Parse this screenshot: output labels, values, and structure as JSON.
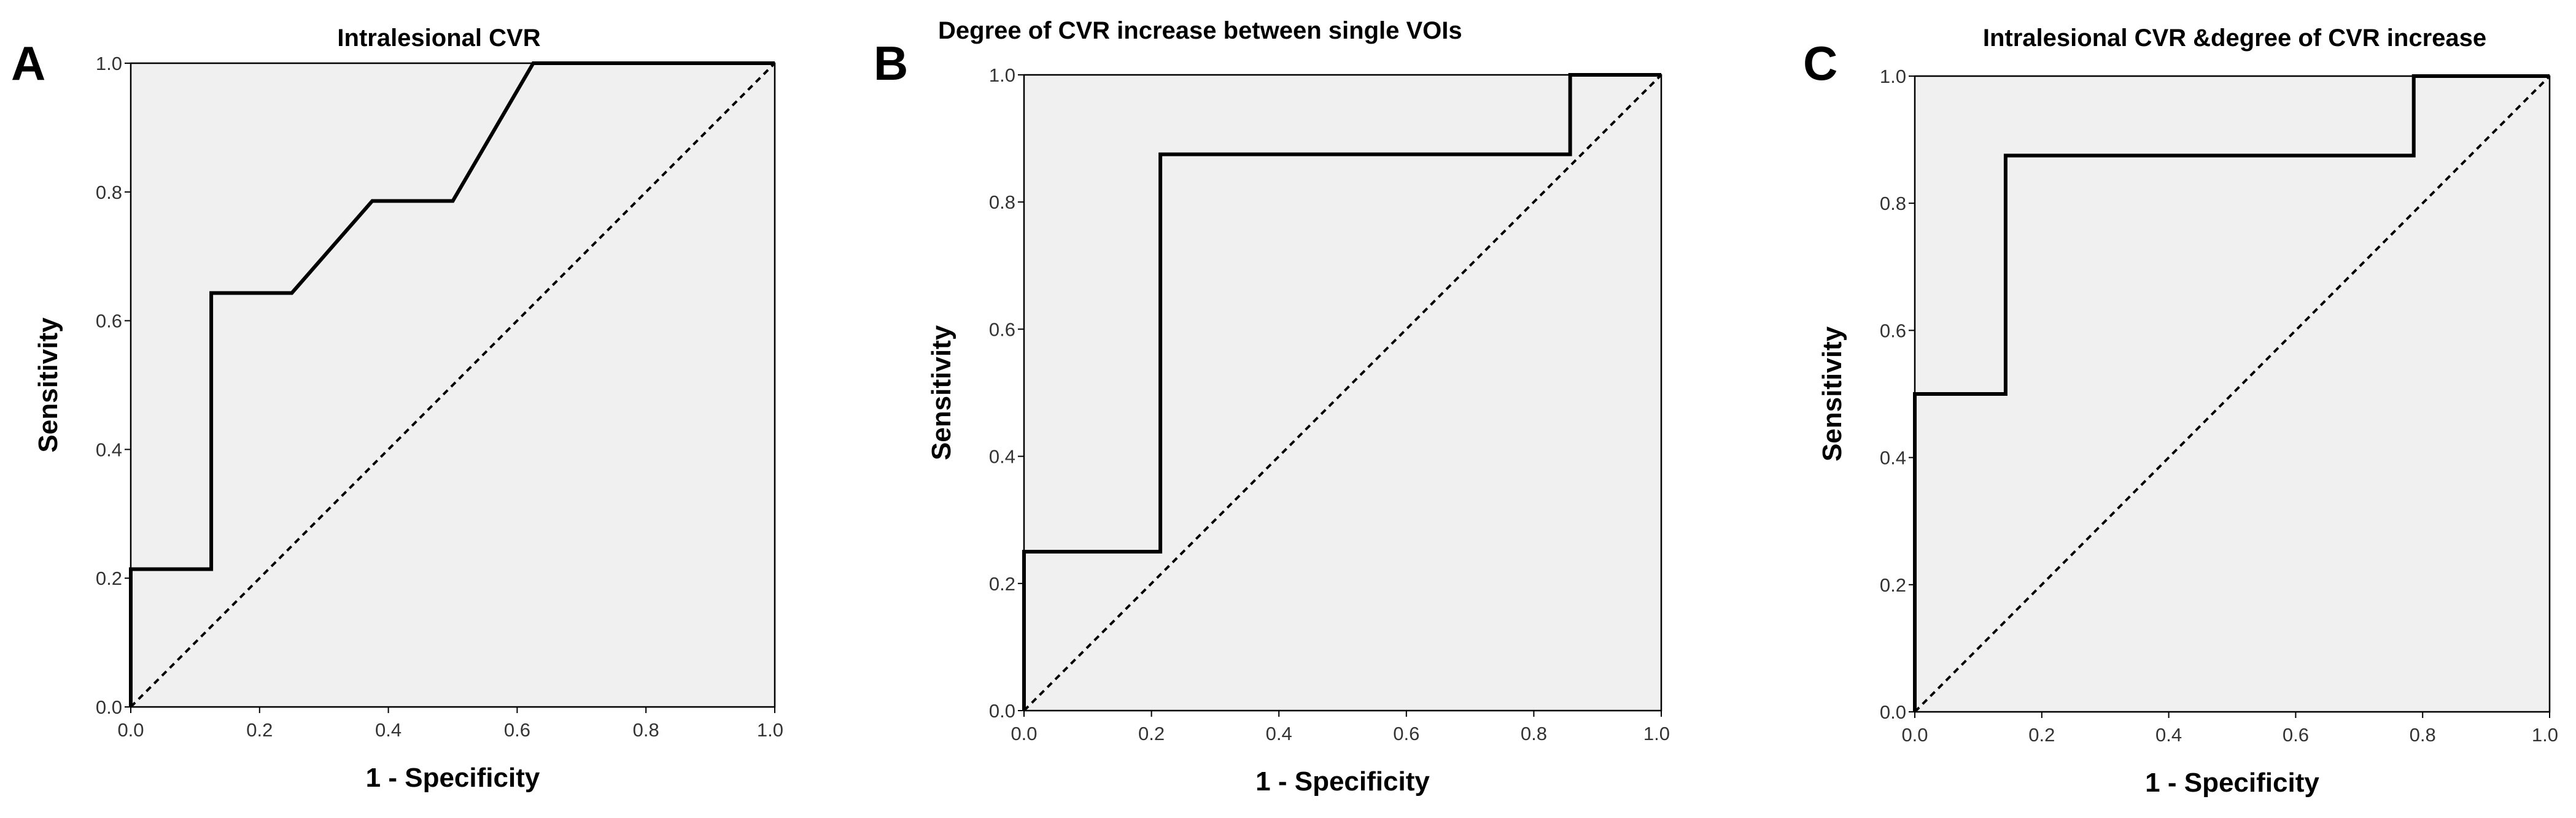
{
  "chart_data": [
    {
      "type": "line",
      "panel": "A",
      "title": "Intralesional CVR",
      "xlabel": "1 - Specificity",
      "ylabel": "Sensitivity",
      "xlim": [
        0,
        1
      ],
      "ylim": [
        0,
        1
      ],
      "x_ticks": [
        "0.0",
        "0.2",
        "0.4",
        "0.6",
        "0.8",
        "1.0"
      ],
      "y_ticks": [
        "0.0",
        "0.2",
        "0.4",
        "0.6",
        "0.8",
        "1.0"
      ],
      "series": [
        {
          "name": "ROC curve",
          "x": [
            0,
            0,
            0.125,
            0.125,
            0.25,
            0.375,
            0.5,
            0.625,
            1.0
          ],
          "y": [
            0,
            0.214,
            0.214,
            0.643,
            0.643,
            0.786,
            0.786,
            1.0,
            1.0
          ]
        },
        {
          "name": "Reference line",
          "x": [
            0,
            1
          ],
          "y": [
            0,
            1
          ]
        }
      ]
    },
    {
      "type": "line",
      "panel": "B",
      "title": "Degree of CVR increase between single VOIs",
      "xlabel": "1 - Specificity",
      "ylabel": "Sensitivity",
      "xlim": [
        0,
        1
      ],
      "ylim": [
        0,
        1
      ],
      "x_ticks": [
        "0.0",
        "0.2",
        "0.4",
        "0.6",
        "0.8",
        "1.0"
      ],
      "y_ticks": [
        "0.0",
        "0.2",
        "0.4",
        "0.6",
        "0.8",
        "1.0"
      ],
      "series": [
        {
          "name": "ROC curve",
          "x": [
            0,
            0,
            0.214,
            0.214,
            0.857,
            0.857,
            1.0
          ],
          "y": [
            0,
            0.25,
            0.25,
            0.875,
            0.875,
            1.0,
            1.0
          ]
        },
        {
          "name": "Reference line",
          "x": [
            0,
            1
          ],
          "y": [
            0,
            1
          ]
        }
      ]
    },
    {
      "type": "line",
      "panel": "C",
      "title": "Intralesional CVR &degree of CVR increase",
      "xlabel": "1 - Specificity",
      "ylabel": "Sensitivity",
      "xlim": [
        0,
        1
      ],
      "ylim": [
        0,
        1
      ],
      "x_ticks": [
        "0.0",
        "0.2",
        "0.4",
        "0.6",
        "0.8",
        "1.0"
      ],
      "y_ticks": [
        "0.0",
        "0.2",
        "0.4",
        "0.6",
        "0.8",
        "1.0"
      ],
      "series": [
        {
          "name": "ROC curve",
          "x": [
            0,
            0,
            0.143,
            0.143,
            0.786,
            0.786,
            1.0
          ],
          "y": [
            0,
            0.5,
            0.5,
            0.875,
            0.875,
            1.0,
            1.0
          ]
        },
        {
          "name": "Reference line",
          "x": [
            0,
            1
          ],
          "y": [
            0,
            1
          ]
        }
      ]
    }
  ]
}
